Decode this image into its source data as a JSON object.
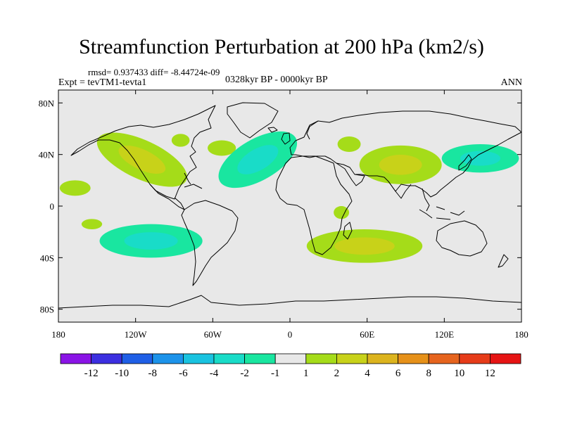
{
  "plot": {
    "title": "Streamfunction Perturbation at 200 hPa (km2/s)",
    "stats": "rmsd= 0.937433 diff= -8.44724e-09",
    "experiment": "Expt = tevTM1-tevta1",
    "period": "0328kyr BP - 0000kyr BP",
    "season": "ANN"
  },
  "colors": {
    "background_field": "#e8e8e8",
    "frame": "#000000",
    "coast": "#000000"
  },
  "chart_data": {
    "type": "heatmap",
    "title": "Streamfunction Perturbation at 200 hPa (km2/s)",
    "projection": "cylindrical equidistant",
    "x_axis": {
      "range": [
        -180,
        180
      ],
      "ticks": [
        -180,
        -120,
        -60,
        0,
        60,
        120,
        180
      ],
      "tick_labels": [
        "180",
        "120W",
        "60W",
        "0",
        "60E",
        "120E",
        "180"
      ]
    },
    "y_axis": {
      "range": [
        -90,
        90
      ],
      "ticks": [
        80,
        40,
        0,
        -40,
        -80
      ],
      "tick_labels": [
        "80N",
        "40N",
        "0",
        "40S",
        "80S"
      ]
    },
    "colorbar": {
      "boundaries": [
        "-12",
        "-10",
        "-8",
        "-6",
        "-4",
        "-2",
        "-1",
        "1",
        "2",
        "4",
        "6",
        "8",
        "10",
        "12"
      ],
      "colors": [
        "#8a14e6",
        "#3c2fe0",
        "#1f5fe6",
        "#1c93ea",
        "#19c3e0",
        "#19dcc8",
        "#19e6a0",
        "#e8e8e8",
        "#a5dc19",
        "#c8d219",
        "#dcb41e",
        "#e69119",
        "#e6641e",
        "#e63c19",
        "#e61414"
      ]
    },
    "anomalies": [
      {
        "name": "NE Pacific / North America positive",
        "lon": -115,
        "lat": 36,
        "lon_radius": 38,
        "lat_radius": 15,
        "rotation": 25,
        "levels": [
          1,
          2
        ]
      },
      {
        "name": "Labrador positive",
        "lon": -85,
        "lat": 51,
        "lon_radius": 7,
        "lat_radius": 5,
        "rotation": 0,
        "levels": [
          1
        ]
      },
      {
        "name": "Central North Atlantic positive",
        "lon": -53,
        "lat": 45,
        "lon_radius": 11,
        "lat_radius": 6,
        "rotation": 0,
        "levels": [
          1
        ]
      },
      {
        "name": "Western Pacific positive",
        "lon": -167,
        "lat": 14,
        "lon_radius": 12,
        "lat_radius": 6,
        "rotation": 0,
        "levels": [
          1
        ]
      },
      {
        "name": "Eastern tropical Pacific positive",
        "lon": -154,
        "lat": -14,
        "lon_radius": 8,
        "lat_radius": 4,
        "rotation": 0,
        "levels": [
          1
        ]
      },
      {
        "name": "North Atlantic negative",
        "lon": -25,
        "lat": 36,
        "lon_radius": 34,
        "lat_radius": 16,
        "rotation": -30,
        "levels": [
          -1,
          -2
        ]
      },
      {
        "name": "Caspian positive",
        "lon": 46,
        "lat": 48,
        "lon_radius": 9,
        "lat_radius": 6,
        "rotation": 0,
        "levels": [
          1
        ]
      },
      {
        "name": "Tibetan Plateau positive",
        "lon": 86,
        "lat": 32,
        "lon_radius": 32,
        "lat_radius": 15,
        "rotation": 0,
        "levels": [
          1,
          2
        ]
      },
      {
        "name": "NW Pacific negative",
        "lon": 148,
        "lat": 37,
        "lon_radius": 30,
        "lat_radius": 11,
        "rotation": 0,
        "levels": [
          -1,
          -2
        ]
      },
      {
        "name": "Equatorial Indian Ocean positive",
        "lon": 40,
        "lat": -5,
        "lon_radius": 6,
        "lat_radius": 5,
        "rotation": 0,
        "levels": [
          1
        ]
      },
      {
        "name": "South Pacific negative",
        "lon": -108,
        "lat": -27,
        "lon_radius": 40,
        "lat_radius": 13,
        "rotation": 0,
        "levels": [
          -1,
          -2
        ]
      },
      {
        "name": "South Atlantic / Indian Ocean positive",
        "lon": 58,
        "lat": -31,
        "lon_radius": 45,
        "lat_radius": 13,
        "rotation": 0,
        "levels": [
          1,
          2
        ]
      }
    ]
  }
}
